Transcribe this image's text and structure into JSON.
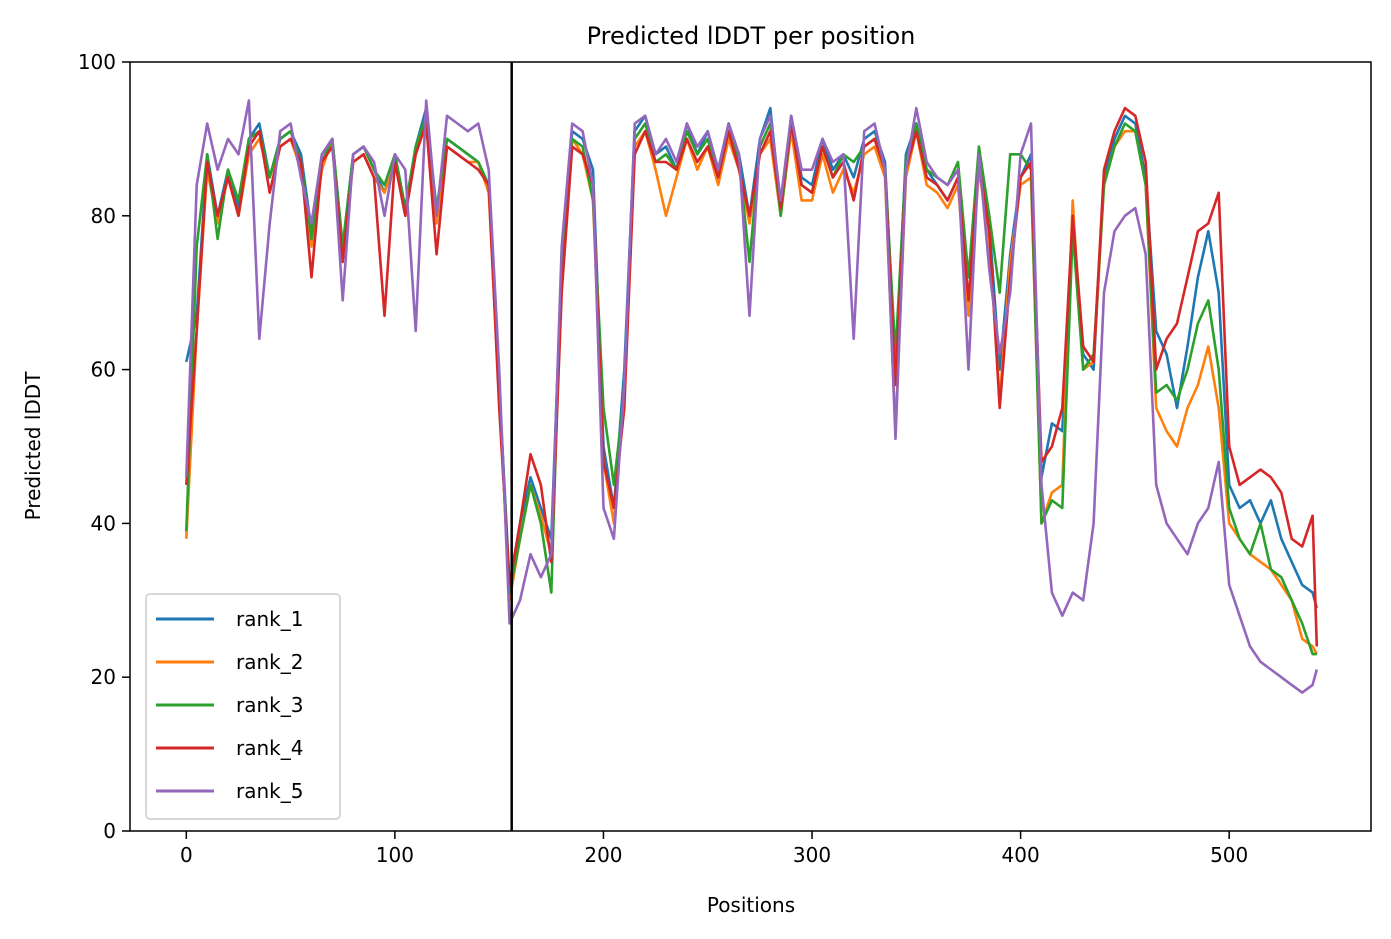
{
  "chart_data": {
    "type": "line",
    "title": "Predicted lDDT per position",
    "xlabel": "Positions",
    "ylabel": "Predicted lDDT",
    "xlim": [
      -27,
      568
    ],
    "ylim": [
      0,
      100
    ],
    "xticks": [
      0,
      100,
      200,
      300,
      400,
      500
    ],
    "yticks": [
      0,
      20,
      40,
      60,
      80,
      100
    ],
    "grid": false,
    "legend_position": "lower-left",
    "vline": 156,
    "series": [
      {
        "name": "rank_1",
        "color": "#1f77b4",
        "x": [
          0,
          5,
          10,
          15,
          20,
          25,
          30,
          35,
          40,
          45,
          50,
          55,
          60,
          65,
          70,
          75,
          80,
          85,
          90,
          95,
          100,
          105,
          110,
          115,
          120,
          125,
          130,
          135,
          140,
          145,
          150,
          155,
          160,
          165,
          170,
          175,
          180,
          185,
          190,
          195,
          200,
          205,
          210,
          215,
          220,
          225,
          230,
          235,
          240,
          245,
          250,
          255,
          260,
          265,
          270,
          275,
          280,
          285,
          290,
          295,
          300,
          305,
          310,
          315,
          320,
          325,
          330,
          335,
          340,
          345,
          350,
          355,
          360,
          365,
          370,
          375,
          380,
          385,
          390,
          395,
          400,
          405,
          410,
          415,
          420,
          425,
          430,
          435,
          440,
          445,
          450,
          455,
          460,
          465,
          470,
          475,
          480,
          485,
          490,
          495,
          500,
          505,
          510,
          515,
          520,
          525,
          530,
          535,
          540,
          542
        ],
        "values": [
          61,
          67,
          88,
          80,
          86,
          81,
          90,
          92,
          85,
          90,
          91,
          88,
          78,
          88,
          90,
          76,
          88,
          89,
          86,
          83,
          88,
          81,
          89,
          94,
          80,
          90,
          89,
          88,
          87,
          84,
          58,
          32,
          40,
          46,
          42,
          38,
          74,
          91,
          90,
          86,
          50,
          42,
          60,
          91,
          93,
          88,
          89,
          86,
          92,
          88,
          91,
          86,
          92,
          88,
          80,
          90,
          94,
          81,
          93,
          85,
          84,
          90,
          86,
          88,
          85,
          90,
          91,
          87,
          60,
          88,
          92,
          86,
          84,
          82,
          85,
          68,
          88,
          79,
          60,
          75,
          85,
          88,
          46,
          53,
          52,
          79,
          62,
          60,
          85,
          90,
          93,
          92,
          85,
          65,
          62,
          55,
          63,
          72,
          78,
          70,
          45,
          42,
          43,
          40,
          43,
          38,
          35,
          32,
          31,
          29
        ]
      },
      {
        "name": "rank_2",
        "color": "#ff7f0e",
        "x": [
          0,
          5,
          10,
          15,
          20,
          25,
          30,
          35,
          40,
          45,
          50,
          55,
          60,
          65,
          70,
          75,
          80,
          85,
          90,
          95,
          100,
          105,
          110,
          115,
          120,
          125,
          130,
          135,
          140,
          145,
          150,
          155,
          160,
          165,
          170,
          175,
          180,
          185,
          190,
          195,
          200,
          205,
          210,
          215,
          220,
          225,
          230,
          235,
          240,
          245,
          250,
          255,
          260,
          265,
          270,
          275,
          280,
          285,
          290,
          295,
          300,
          305,
          310,
          315,
          320,
          325,
          330,
          335,
          340,
          345,
          350,
          355,
          360,
          365,
          370,
          375,
          380,
          385,
          390,
          395,
          400,
          405,
          410,
          415,
          420,
          425,
          430,
          435,
          440,
          445,
          450,
          455,
          460,
          465,
          470,
          475,
          480,
          485,
          490,
          495,
          500,
          505,
          510,
          515,
          520,
          525,
          530,
          535,
          540,
          542
        ],
        "values": [
          38,
          65,
          86,
          79,
          85,
          80,
          88,
          90,
          85,
          89,
          90,
          86,
          76,
          86,
          90,
          75,
          87,
          88,
          85,
          83,
          87,
          80,
          88,
          92,
          79,
          89,
          88,
          87,
          87,
          83,
          57,
          30,
          38,
          45,
          41,
          36,
          72,
          90,
          88,
          82,
          48,
          40,
          58,
          89,
          91,
          86,
          80,
          85,
          90,
          86,
          89,
          84,
          90,
          86,
          79,
          88,
          90,
          80,
          91,
          82,
          82,
          88,
          83,
          86,
          83,
          88,
          89,
          85,
          52,
          85,
          91,
          84,
          83,
          81,
          84,
          67,
          86,
          77,
          56,
          74,
          84,
          85,
          40,
          44,
          45,
          82,
          60,
          61,
          84,
          89,
          91,
          91,
          84,
          55,
          52,
          50,
          55,
          58,
          63,
          55,
          40,
          38,
          36,
          35,
          34,
          32,
          30,
          25,
          24,
          23
        ]
      },
      {
        "name": "rank_3",
        "color": "#2ca02c",
        "x": [
          0,
          5,
          10,
          15,
          20,
          25,
          30,
          35,
          40,
          45,
          50,
          55,
          60,
          65,
          70,
          75,
          80,
          85,
          90,
          95,
          100,
          105,
          110,
          115,
          120,
          125,
          130,
          135,
          140,
          145,
          150,
          155,
          160,
          165,
          170,
          175,
          180,
          185,
          190,
          195,
          200,
          205,
          210,
          215,
          220,
          225,
          230,
          235,
          240,
          245,
          250,
          255,
          260,
          265,
          270,
          275,
          280,
          285,
          290,
          295,
          300,
          305,
          310,
          315,
          320,
          325,
          330,
          335,
          340,
          345,
          350,
          355,
          360,
          365,
          370,
          375,
          380,
          385,
          390,
          395,
          400,
          405,
          410,
          415,
          420,
          425,
          430,
          435,
          440,
          445,
          450,
          455,
          460,
          465,
          470,
          475,
          480,
          485,
          490,
          495,
          500,
          505,
          510,
          515,
          520,
          525,
          530,
          535,
          540,
          542
        ],
        "values": [
          39,
          76,
          88,
          77,
          86,
          82,
          90,
          91,
          85,
          90,
          91,
          87,
          77,
          87,
          90,
          76,
          88,
          89,
          86,
          84,
          88,
          81,
          89,
          93,
          81,
          90,
          89,
          88,
          87,
          84,
          58,
          31,
          38,
          45,
          40,
          31,
          74,
          90,
          89,
          82,
          55,
          45,
          57,
          90,
          92,
          87,
          88,
          86,
          91,
          88,
          90,
          85,
          91,
          87,
          74,
          89,
          92,
          80,
          92,
          84,
          83,
          89,
          85,
          88,
          87,
          89,
          90,
          86,
          62,
          87,
          92,
          86,
          85,
          84,
          87,
          72,
          89,
          80,
          70,
          88,
          88,
          86,
          40,
          43,
          42,
          78,
          60,
          62,
          84,
          89,
          92,
          91,
          84,
          57,
          58,
          56,
          60,
          66,
          69,
          60,
          42,
          38,
          36,
          40,
          34,
          33,
          30,
          27,
          23,
          23
        ]
      },
      {
        "name": "rank_4",
        "color": "#d62728",
        "x": [
          0,
          5,
          10,
          15,
          20,
          25,
          30,
          35,
          40,
          45,
          50,
          55,
          60,
          65,
          70,
          75,
          80,
          85,
          90,
          95,
          100,
          105,
          110,
          115,
          120,
          125,
          130,
          135,
          140,
          145,
          150,
          155,
          160,
          165,
          170,
          175,
          180,
          185,
          190,
          195,
          200,
          205,
          210,
          215,
          220,
          225,
          230,
          235,
          240,
          245,
          250,
          255,
          260,
          265,
          270,
          275,
          280,
          285,
          290,
          295,
          300,
          305,
          310,
          315,
          320,
          325,
          330,
          335,
          340,
          345,
          350,
          355,
          360,
          365,
          370,
          375,
          380,
          385,
          390,
          395,
          400,
          405,
          410,
          415,
          420,
          425,
          430,
          435,
          440,
          445,
          450,
          455,
          460,
          465,
          470,
          475,
          480,
          485,
          490,
          495,
          500,
          505,
          510,
          515,
          520,
          525,
          530,
          535,
          540,
          542
        ],
        "values": [
          45,
          65,
          87,
          80,
          85,
          80,
          89,
          91,
          83,
          89,
          90,
          87,
          72,
          87,
          89,
          74,
          87,
          88,
          85,
          67,
          87,
          80,
          88,
          92,
          75,
          89,
          88,
          87,
          86,
          84,
          55,
          32,
          40,
          49,
          45,
          35,
          70,
          89,
          88,
          84,
          48,
          42,
          55,
          88,
          91,
          87,
          87,
          86,
          90,
          87,
          89,
          85,
          91,
          86,
          80,
          88,
          91,
          81,
          92,
          84,
          83,
          89,
          85,
          87,
          82,
          89,
          90,
          86,
          58,
          86,
          91,
          85,
          84,
          82,
          85,
          69,
          87,
          78,
          55,
          72,
          85,
          87,
          48,
          50,
          55,
          80,
          63,
          61,
          86,
          91,
          94,
          93,
          87,
          60,
          64,
          66,
          72,
          78,
          79,
          83,
          50,
          45,
          46,
          47,
          46,
          44,
          38,
          37,
          41,
          24
        ]
      },
      {
        "name": "rank_5",
        "color": "#9467bd",
        "x": [
          0,
          5,
          10,
          15,
          20,
          25,
          30,
          35,
          40,
          45,
          50,
          55,
          60,
          65,
          70,
          75,
          80,
          85,
          90,
          95,
          100,
          105,
          110,
          115,
          120,
          125,
          130,
          135,
          140,
          145,
          150,
          155,
          160,
          165,
          170,
          175,
          180,
          185,
          190,
          195,
          200,
          205,
          210,
          215,
          220,
          225,
          230,
          235,
          240,
          245,
          250,
          255,
          260,
          265,
          270,
          275,
          280,
          285,
          290,
          295,
          300,
          305,
          310,
          315,
          320,
          325,
          330,
          335,
          340,
          345,
          350,
          355,
          360,
          365,
          370,
          375,
          380,
          385,
          390,
          395,
          400,
          405,
          410,
          415,
          420,
          425,
          430,
          435,
          440,
          445,
          450,
          455,
          460,
          465,
          470,
          475,
          480,
          485,
          490,
          495,
          500,
          505,
          510,
          515,
          520,
          525,
          530,
          535,
          540,
          542
        ],
        "values": [
          46,
          84,
          92,
          86,
          90,
          88,
          95,
          64,
          79,
          91,
          92,
          85,
          79,
          88,
          90,
          69,
          88,
          89,
          87,
          80,
          88,
          86,
          65,
          95,
          80,
          93,
          92,
          91,
          92,
          86,
          60,
          27,
          30,
          36,
          33,
          36,
          76,
          92,
          91,
          84,
          42,
          38,
          58,
          92,
          93,
          88,
          90,
          87,
          92,
          89,
          91,
          86,
          92,
          88,
          67,
          90,
          93,
          82,
          93,
          86,
          86,
          90,
          87,
          88,
          64,
          91,
          92,
          86,
          51,
          86,
          94,
          87,
          85,
          84,
          86,
          60,
          88,
          73,
          62,
          70,
          88,
          92,
          45,
          31,
          28,
          31,
          30,
          40,
          70,
          78,
          80,
          81,
          75,
          45,
          40,
          38,
          36,
          40,
          42,
          48,
          32,
          28,
          24,
          22,
          21,
          20,
          19,
          18,
          19,
          21
        ]
      }
    ]
  }
}
